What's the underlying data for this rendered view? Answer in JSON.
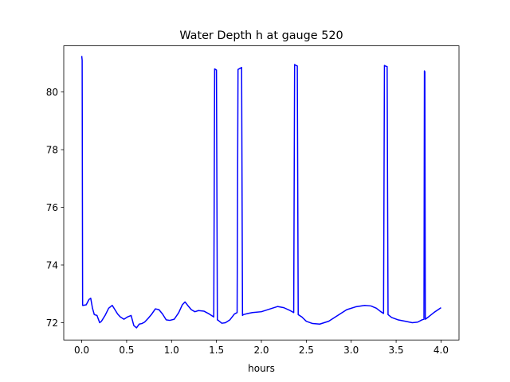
{
  "chart_data": {
    "type": "line",
    "title": "Water Depth h at gauge 520",
    "xlabel": "hours",
    "ylabel": "",
    "xlim": [
      -0.2,
      4.2
    ],
    "ylim": [
      71.4,
      81.6
    ],
    "xticks": [
      0.0,
      0.5,
      1.0,
      1.5,
      2.0,
      2.5,
      3.0,
      3.5,
      4.0
    ],
    "xtick_labels": [
      "0.0",
      "0.5",
      "1.0",
      "1.5",
      "2.0",
      "2.5",
      "3.0",
      "3.5",
      "4.0"
    ],
    "yticks": [
      72,
      74,
      76,
      78,
      80
    ],
    "ytick_labels": [
      "72",
      "74",
      "76",
      "78",
      "80"
    ],
    "grid": false,
    "legend": "none",
    "series": [
      {
        "color": "#0000ff",
        "x": [
          0.0,
          0.005,
          0.01,
          0.015,
          0.05,
          0.08,
          0.1,
          0.12,
          0.14,
          0.17,
          0.2,
          0.22,
          0.26,
          0.3,
          0.34,
          0.37,
          0.4,
          0.43,
          0.47,
          0.51,
          0.55,
          0.58,
          0.61,
          0.64,
          0.67,
          0.7,
          0.74,
          0.78,
          0.82,
          0.86,
          0.9,
          0.94,
          0.98,
          1.03,
          1.08,
          1.12,
          1.15,
          1.18,
          1.22,
          1.26,
          1.3,
          1.36,
          1.42,
          1.47,
          1.48,
          1.49,
          1.5,
          1.51,
          1.52,
          1.56,
          1.6,
          1.65,
          1.7,
          1.73,
          1.74,
          1.78,
          1.79,
          1.8,
          1.85,
          1.9,
          2.0,
          2.1,
          2.18,
          2.25,
          2.32,
          2.36,
          2.37,
          2.38,
          2.4,
          2.41,
          2.45,
          2.5,
          2.57,
          2.65,
          2.75,
          2.85,
          2.95,
          3.05,
          3.15,
          3.22,
          3.28,
          3.33,
          3.36,
          3.37,
          3.38,
          3.4,
          3.41,
          3.45,
          3.52,
          3.6,
          3.68,
          3.74,
          3.79,
          3.81,
          3.815,
          3.82,
          3.825,
          3.86,
          3.92,
          4.0
        ],
        "y": [
          81.25,
          81.1,
          72.6,
          72.6,
          72.62,
          72.8,
          72.85,
          72.5,
          72.28,
          72.25,
          72.0,
          72.05,
          72.25,
          72.5,
          72.6,
          72.45,
          72.3,
          72.2,
          72.12,
          72.2,
          72.25,
          71.9,
          71.82,
          71.95,
          71.97,
          72.02,
          72.15,
          72.3,
          72.48,
          72.45,
          72.3,
          72.1,
          72.08,
          72.12,
          72.35,
          72.62,
          72.72,
          72.6,
          72.45,
          72.38,
          72.42,
          72.4,
          72.3,
          72.2,
          80.8,
          80.78,
          80.76,
          72.1,
          72.08,
          71.98,
          72.0,
          72.1,
          72.3,
          72.35,
          80.78,
          80.85,
          72.25,
          72.28,
          72.32,
          72.35,
          72.38,
          72.48,
          72.56,
          72.52,
          72.42,
          72.35,
          80.95,
          80.93,
          80.9,
          72.28,
          72.2,
          72.05,
          71.97,
          71.95,
          72.05,
          72.25,
          72.45,
          72.55,
          72.6,
          72.58,
          72.5,
          72.38,
          72.32,
          80.92,
          80.9,
          80.88,
          72.28,
          72.18,
          72.1,
          72.05,
          72.0,
          72.02,
          72.1,
          72.12,
          80.73,
          80.7,
          72.12,
          72.2,
          72.35,
          72.52
        ]
      }
    ]
  }
}
